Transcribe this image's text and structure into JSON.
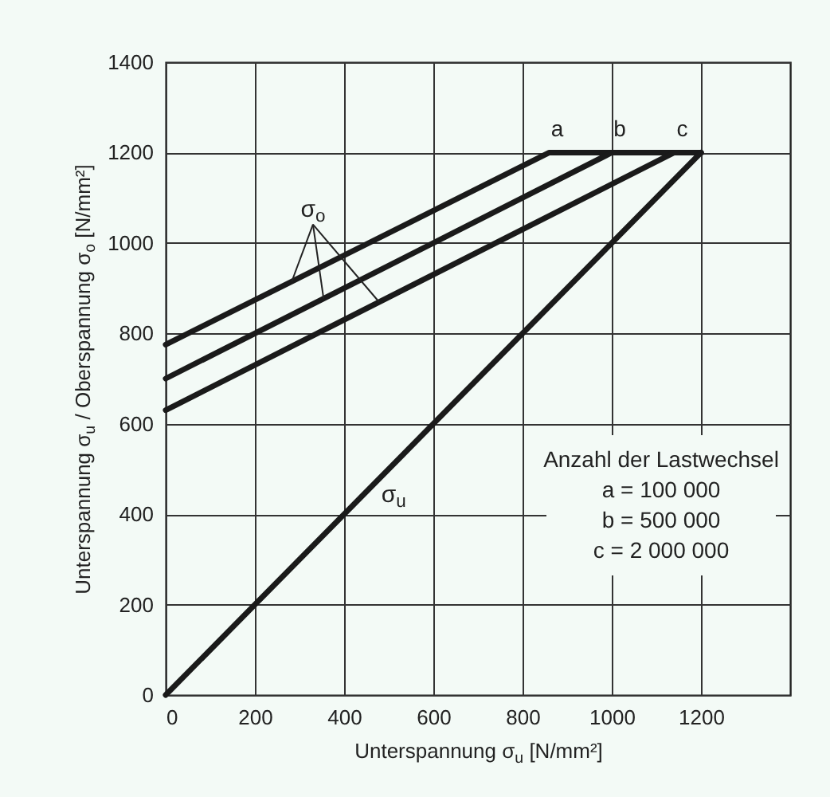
{
  "chart_data": {
    "type": "line",
    "xlabel": "Unterspannung σ$_{u}$  [N/mm²]",
    "ylabel": "Unterspannung σ$_{u}$ / Oberspannung σ$_{o}$  [N/mm²]",
    "xlim": [
      0,
      1400
    ],
    "xticks": [
      0,
      200,
      400,
      600,
      800,
      1000,
      1200
    ],
    "ylim": [
      0,
      1400
    ],
    "yticks": [
      0,
      200,
      400,
      600,
      800,
      1000,
      1200,
      1400
    ],
    "grid": true,
    "series": [
      {
        "name": "a",
        "color": "#1a1a1a",
        "x": [
          0,
          860,
          1200
        ],
        "values": [
          775,
          1200,
          1200
        ]
      },
      {
        "name": "b",
        "color": "#1a1a1a",
        "x": [
          0,
          1000,
          1200
        ],
        "values": [
          700,
          1200,
          1200
        ]
      },
      {
        "name": "c",
        "color": "#1a1a1a",
        "x": [
          0,
          1140,
          1200
        ],
        "values": [
          630,
          1200,
          1200
        ]
      },
      {
        "color": "#1a1a1a",
        "x": [
          0,
          1200
        ],
        "values": [
          0,
          1200
        ]
      }
    ],
    "annotations": [
      {
        "text": "σ$_{o}$",
        "x": 354,
        "y": 877
      },
      "σ$_{u}$",
      "Anzahl der Lastwechsel",
      "a =   100 000",
      "b =   500 000",
      "c = 2 000 000"
    ]
  }
}
